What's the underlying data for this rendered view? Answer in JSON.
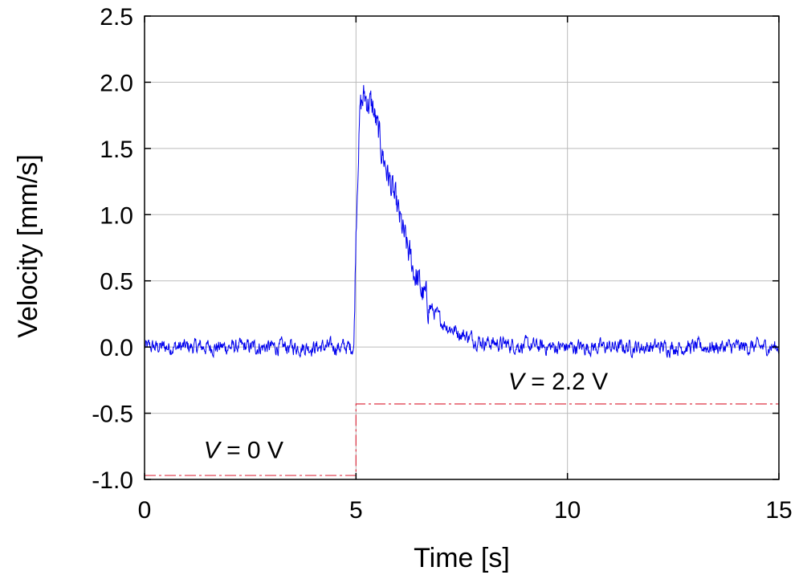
{
  "chart_data": {
    "type": "line",
    "title": "",
    "xlabel": "Time [s]",
    "ylabel": "Velocity [mm/s]",
    "xlim": [
      0,
      15
    ],
    "ylim": [
      -1.0,
      2.5
    ],
    "x_ticks": [
      0,
      5,
      10,
      15
    ],
    "x_tick_labels": [
      "0",
      "5",
      "10",
      "15"
    ],
    "y_ticks": [
      -1.0,
      -0.5,
      0.0,
      0.5,
      1.0,
      1.5,
      2.0,
      2.5
    ],
    "y_tick_labels": [
      "-1.0",
      "-0.5",
      "0.0",
      "0.5",
      "1.0",
      "1.5",
      "2.0",
      "2.5"
    ],
    "grid": true,
    "series": [
      {
        "color": "#0000ee",
        "style": "solid-noisy",
        "x": [
          0,
          0.5,
          1,
          1.5,
          2,
          2.5,
          3,
          3.5,
          4,
          4.5,
          4.95,
          5.0,
          5.05,
          5.1,
          5.2,
          5.3,
          5.4,
          5.5,
          5.6,
          5.8,
          6.0,
          6.2,
          6.4,
          6.6,
          6.8,
          7.0,
          7.2,
          7.5,
          7.8,
          8.0,
          8.5,
          9.0,
          9.5,
          10,
          11,
          12,
          13,
          14,
          15
        ],
        "y": [
          0.0,
          0.0,
          0.0,
          0.0,
          0.0,
          0.0,
          0.0,
          0.0,
          0.0,
          0.0,
          0.0,
          0.9,
          1.45,
          1.8,
          1.9,
          1.85,
          1.8,
          1.65,
          1.5,
          1.25,
          1.0,
          0.75,
          0.55,
          0.38,
          0.28,
          0.2,
          0.15,
          0.1,
          0.06,
          0.04,
          0.02,
          0.01,
          0.0,
          0.0,
          0.0,
          0.0,
          0.0,
          0.0,
          0.0
        ],
        "noise_amplitude": 0.055
      },
      {
        "color": "#dd3344",
        "style": "dashed",
        "x": [
          0,
          5,
          5,
          15
        ],
        "y": [
          -0.97,
          -0.97,
          -0.43,
          -0.43
        ]
      }
    ],
    "annotations": [
      {
        "prefix": "V",
        "text": " = 0 V",
        "x": 1.4,
        "y": -0.84
      },
      {
        "prefix": "V",
        "text": " = 2.2 V",
        "x": 8.6,
        "y": -0.32
      }
    ]
  }
}
